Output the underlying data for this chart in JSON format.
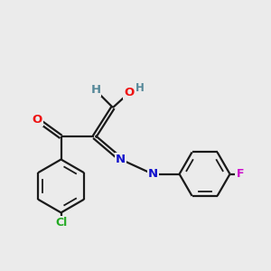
{
  "background_color": "#ebebeb",
  "bond_color": "#1a1a1a",
  "atom_colors": {
    "O": "#ee1111",
    "N": "#1111cc",
    "Cl": "#22aa22",
    "F": "#cc11cc",
    "H": "#558899",
    "C": "#1a1a1a"
  },
  "figsize": [
    3.0,
    3.0
  ],
  "dpi": 100
}
